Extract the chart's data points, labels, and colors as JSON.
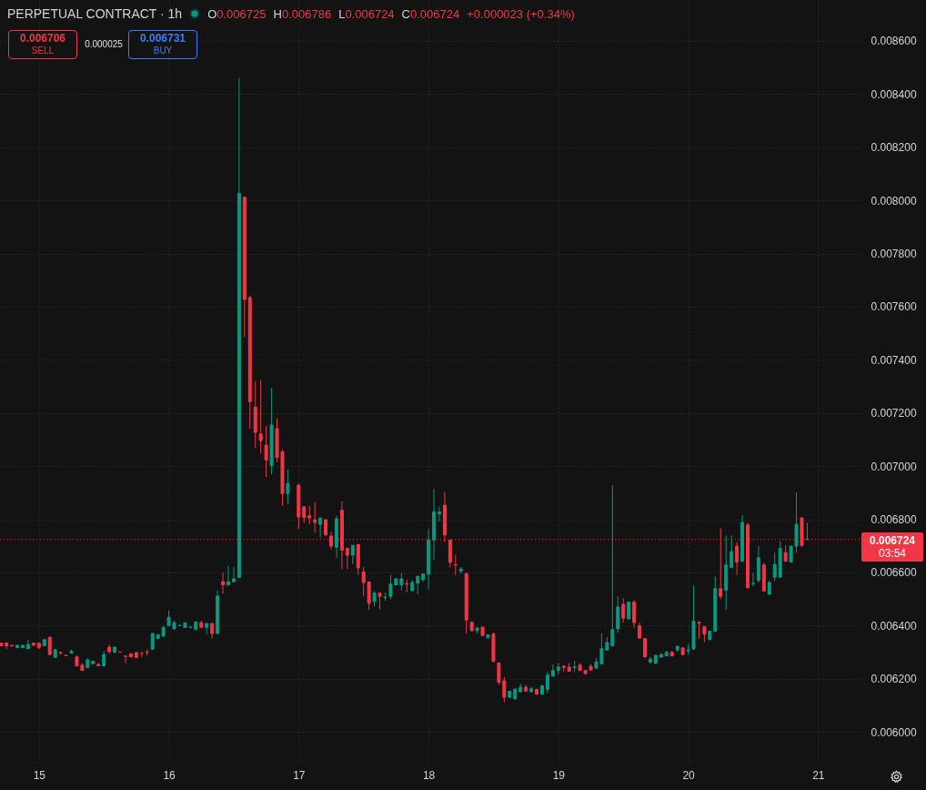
{
  "chart_data": {
    "type": "candlestick",
    "title": "PERPETUAL CONTRACT · 1h",
    "annotations": [
      "O0.006725",
      "H0.006786",
      "L0.006724",
      "C0.006724",
      "+0.000023 (+0.34%)",
      "0.006706",
      "SELL",
      "0.000025",
      "0.006731",
      "BUY",
      "03:54"
    ],
    "x": [
      14.7083,
      14.75,
      14.7917,
      14.8333,
      14.875,
      14.9167,
      14.9583,
      15,
      15.0417,
      15.0833,
      15.125,
      15.1667,
      15.2083,
      15.25,
      15.2917,
      15.3333,
      15.375,
      15.4167,
      15.4583,
      15.5,
      15.5417,
      15.5833,
      15.625,
      15.6667,
      15.7083,
      15.75,
      15.7917,
      15.8333,
      15.875,
      15.9167,
      15.9583,
      16,
      16.0417,
      16.0833,
      16.125,
      16.1667,
      16.2083,
      16.25,
      16.2917,
      16.3333,
      16.375,
      16.4167,
      16.4583,
      16.5,
      16.5417,
      16.5833,
      16.625,
      16.6667,
      16.7083,
      16.75,
      16.7917,
      16.8333,
      16.875,
      16.9167,
      17,
      17.0417,
      17.0833,
      17.125,
      17.1667,
      17.2083,
      17.25,
      17.2917,
      17.3333,
      17.375,
      17.4167,
      17.4583,
      17.5,
      17.5417,
      17.5833,
      17.625,
      17.6667,
      17.7083,
      17.75,
      17.7917,
      17.8333,
      17.875,
      17.9167,
      17.9583,
      18,
      18.0417,
      18.0833,
      18.125,
      18.1667,
      18.2083,
      18.25,
      18.2917,
      18.3333,
      18.375,
      18.4167,
      18.4583,
      18.5,
      18.5417,
      18.5833,
      18.625,
      18.6667,
      18.7083,
      18.75,
      18.7917,
      18.8333,
      18.875,
      18.9167,
      18.9583,
      19,
      19.0417,
      19.0833,
      19.125,
      19.1667,
      19.2083,
      19.25,
      19.2917,
      19.3333,
      19.375,
      19.4167,
      19.4583,
      19.5,
      19.5417,
      19.5833,
      19.625,
      19.6667,
      19.7083,
      19.75,
      19.7917,
      19.8333,
      19.875,
      19.9167,
      19.9583,
      20,
      20.0417,
      20.0833,
      20.125,
      20.1667,
      20.2083,
      20.25,
      20.2917,
      20.3333,
      20.375,
      20.4167,
      20.4583,
      20.5,
      20.5417,
      20.5833,
      20.625,
      20.6667,
      20.7083,
      20.75,
      20.7917,
      20.8333,
      20.875,
      20.9167
    ],
    "ohlc": [
      [
        0.006334,
        0.006336,
        0.006322,
        0.006324
      ],
      [
        0.006334,
        0.006336,
        0.006311,
        0.006324
      ],
      [
        0.006325,
        0.006327,
        0.006321,
        0.006323
      ],
      [
        0.006317,
        0.006326,
        0.006315,
        0.006326
      ],
      [
        0.006317,
        0.006327,
        0.006315,
        0.006326
      ],
      [
        0.006313,
        0.006347,
        0.006311,
        0.006329
      ],
      [
        0.006334,
        0.006336,
        0.006324,
        0.006326
      ],
      [
        0.006334,
        0.006336,
        0.006311,
        0.006318
      ],
      [
        0.006324,
        0.006349,
        0.006322,
        0.006347
      ],
      [
        0.006356,
        0.006358,
        0.006288,
        0.006291
      ],
      [
        0.00628,
        0.006313,
        0.006278,
        0.006309
      ],
      [
        0.006299,
        0.0063,
        0.00629,
        0.006297
      ],
      [
        0.006288,
        0.006289,
        0.006286,
        0.006287
      ],
      [
        0.006296,
        0.006309,
        0.006295,
        0.006303
      ],
      [
        0.006282,
        0.006288,
        0.006247,
        0.006248
      ],
      [
        0.006251,
        0.006259,
        0.00623,
        0.006231
      ],
      [
        0.006242,
        0.006277,
        0.00624,
        0.006271
      ],
      [
        0.006256,
        0.006267,
        0.006255,
        0.006266
      ],
      [
        0.006254,
        0.006259,
        0.006248,
        0.006249
      ],
      [
        0.006248,
        0.006303,
        0.006246,
        0.006291
      ],
      [
        0.006319,
        0.006328,
        0.006294,
        0.006302
      ],
      [
        0.006299,
        0.00632,
        0.006298,
        0.006319
      ],
      [
        0.006301,
        0.006302,
        0.006299,
        0.0063
      ],
      [
        0.006285,
        0.006286,
        0.006259,
        0.006284
      ],
      [
        0.006294,
        0.006295,
        0.006282,
        0.006282
      ],
      [
        0.006298,
        0.006302,
        0.006279,
        0.006279
      ],
      [
        0.006297,
        0.006298,
        0.006282,
        0.006296
      ],
      [
        0.0063,
        0.006311,
        0.006288,
        0.006299
      ],
      [
        0.006311,
        0.006372,
        0.00631,
        0.00637
      ],
      [
        0.006351,
        0.006366,
        0.00635,
        0.006366
      ],
      [
        0.00636,
        0.006399,
        0.006359,
        0.006393
      ],
      [
        0.006399,
        0.006456,
        0.006398,
        0.006431
      ],
      [
        0.006388,
        0.006419,
        0.006383,
        0.006411
      ],
      [
        0.0064,
        0.006402,
        0.006398,
        0.006401
      ],
      [
        0.006393,
        0.006411,
        0.006392,
        0.00641
      ],
      [
        0.006393,
        0.006397,
        0.00639,
        0.006394
      ],
      [
        0.006385,
        0.006414,
        0.006384,
        0.006414
      ],
      [
        0.006411,
        0.006419,
        0.006393,
        0.006393
      ],
      [
        0.006393,
        0.006408,
        0.006368,
        0.006408
      ],
      [
        0.006408,
        0.006409,
        0.006351,
        0.00637
      ],
      [
        0.00637,
        0.006531,
        0.006369,
        0.006511
      ],
      [
        0.006565,
        0.0066,
        0.00652,
        0.006553
      ],
      [
        0.006553,
        0.006625,
        0.006551,
        0.006565
      ],
      [
        0.006565,
        0.006621,
        0.006564,
        0.006576
      ],
      [
        0.006581,
        0.00846,
        0.006579,
        0.008026
      ],
      [
        0.008012,
        0.008015,
        0.007485,
        0.007627
      ],
      [
        0.007634,
        0.007641,
        0.007141,
        0.007243
      ],
      [
        0.007222,
        0.00732,
        0.007068,
        0.007127
      ],
      [
        0.007121,
        0.007325,
        0.007047,
        0.007096
      ],
      [
        0.007079,
        0.007152,
        0.006959,
        0.007023
      ],
      [
        0.007002,
        0.007294,
        0.00697,
        0.007155
      ],
      [
        0.007141,
        0.00718,
        0.007015,
        0.007033
      ],
      [
        0.007054,
        0.007061,
        0.006851,
        0.006897
      ],
      [
        0.006897,
        0.006987,
        0.006858,
        0.006935
      ],
      [
        0.006928,
        0.006935,
        0.006763,
        0.006809
      ],
      [
        0.006847,
        0.00685,
        0.006786,
        0.006807
      ],
      [
        0.006813,
        0.006851,
        0.006781,
        0.006805
      ],
      [
        0.006798,
        0.006865,
        0.006749,
        0.006788
      ],
      [
        0.006781,
        0.006807,
        0.006732,
        0.006805
      ],
      [
        0.006798,
        0.0068,
        0.006738,
        0.006741
      ],
      [
        0.006737,
        0.006754,
        0.006687,
        0.006699
      ],
      [
        0.006695,
        0.006813,
        0.006655,
        0.006802
      ],
      [
        0.006834,
        0.006867,
        0.006613,
        0.006684
      ],
      [
        0.006691,
        0.006692,
        0.006613,
        0.006665
      ],
      [
        0.006665,
        0.006702,
        0.00663,
        0.006702
      ],
      [
        0.006705,
        0.006706,
        0.00659,
        0.006617
      ],
      [
        0.006602,
        0.006621,
        0.00651,
        0.006562
      ],
      [
        0.006564,
        0.006565,
        0.006459,
        0.006484
      ],
      [
        0.006491,
        0.00653,
        0.006471,
        0.006522
      ],
      [
        0.006522,
        0.006524,
        0.006461,
        0.00651
      ],
      [
        0.006505,
        0.006524,
        0.006493,
        0.006507
      ],
      [
        0.00651,
        0.00659,
        0.006499,
        0.006556
      ],
      [
        0.006553,
        0.006579,
        0.006552,
        0.006576
      ],
      [
        0.006553,
        0.006598,
        0.006533,
        0.006576
      ],
      [
        0.006558,
        0.006573,
        0.006525,
        0.006556
      ],
      [
        0.006531,
        0.006571,
        0.00653,
        0.006562
      ],
      [
        0.00656,
        0.006587,
        0.006518,
        0.006585
      ],
      [
        0.006573,
        0.006594,
        0.006565,
        0.006594
      ],
      [
        0.006594,
        0.006762,
        0.006537,
        0.006722
      ],
      [
        0.006722,
        0.006914,
        0.006647,
        0.006828
      ],
      [
        0.00682,
        0.006847,
        0.006792,
        0.006827
      ],
      [
        0.006853,
        0.006904,
        0.006714,
        0.006741
      ],
      [
        0.006722,
        0.006724,
        0.006619,
        0.006638
      ],
      [
        0.00663,
        0.006665,
        0.00659,
        0.006628
      ],
      [
        0.006605,
        0.006621,
        0.006596,
        0.006613
      ],
      [
        0.006596,
        0.006598,
        0.00637,
        0.006421
      ],
      [
        0.006413,
        0.006415,
        0.006378,
        0.006381
      ],
      [
        0.006381,
        0.006393,
        0.006371,
        0.006391
      ],
      [
        0.006394,
        0.006396,
        0.00636,
        0.006362
      ],
      [
        0.006354,
        0.006366,
        0.006352,
        0.006365
      ],
      [
        0.006368,
        0.006373,
        0.006263,
        0.006265
      ],
      [
        0.006259,
        0.006261,
        0.006177,
        0.006187
      ],
      [
        0.006192,
        0.006206,
        0.006111,
        0.00613
      ],
      [
        0.00613,
        0.006155,
        0.006128,
        0.006153
      ],
      [
        0.006124,
        0.006163,
        0.006122,
        0.006161
      ],
      [
        0.006151,
        0.006182,
        0.006149,
        0.006168
      ],
      [
        0.006168,
        0.006176,
        0.006149,
        0.006154
      ],
      [
        0.006151,
        0.00617,
        0.006149,
        0.006162
      ],
      [
        0.00616,
        0.006162,
        0.00614,
        0.006142
      ],
      [
        0.006142,
        0.006176,
        0.00614,
        0.006174
      ],
      [
        0.006159,
        0.006225,
        0.006145,
        0.006214
      ],
      [
        0.00621,
        0.006254,
        0.006208,
        0.006231
      ],
      [
        0.006231,
        0.006259,
        0.006217,
        0.006244
      ],
      [
        0.006247,
        0.00625,
        0.006225,
        0.006242
      ],
      [
        0.006244,
        0.006259,
        0.006226,
        0.006228
      ],
      [
        0.006242,
        0.006267,
        0.006225,
        0.006244
      ],
      [
        0.006251,
        0.006259,
        0.00623,
        0.006231
      ],
      [
        0.006231,
        0.006233,
        0.006218,
        0.006219
      ],
      [
        0.006246,
        0.006256,
        0.006232,
        0.006233
      ],
      [
        0.00624,
        0.006279,
        0.006238,
        0.006263
      ],
      [
        0.006256,
        0.00637,
        0.006254,
        0.006313
      ],
      [
        0.006308,
        0.006356,
        0.006306,
        0.006336
      ],
      [
        0.006324,
        0.006928,
        0.00632,
        0.006385
      ],
      [
        0.006388,
        0.00651,
        0.006373,
        0.00647
      ],
      [
        0.00648,
        0.006503,
        0.006411,
        0.006428
      ],
      [
        0.006425,
        0.00649,
        0.006423,
        0.006488
      ],
      [
        0.006488,
        0.006496,
        0.006391,
        0.006411
      ],
      [
        0.006399,
        0.006411,
        0.006351,
        0.006353
      ],
      [
        0.006351,
        0.006353,
        0.00628,
        0.006282
      ],
      [
        0.006263,
        0.006282,
        0.006256,
        0.006274
      ],
      [
        0.006259,
        0.00629,
        0.006254,
        0.006288
      ],
      [
        0.006281,
        0.006296,
        0.006279,
        0.006291
      ],
      [
        0.006286,
        0.006305,
        0.006284,
        0.006299
      ],
      [
        0.006299,
        0.006305,
        0.006284,
        0.006286
      ],
      [
        0.006308,
        0.006324,
        0.006302,
        0.006322
      ],
      [
        0.006316,
        0.006318,
        0.006289,
        0.006291
      ],
      [
        0.006305,
        0.006331,
        0.006291,
        0.006308
      ],
      [
        0.006313,
        0.00655,
        0.006307,
        0.006416
      ],
      [
        0.006413,
        0.006416,
        0.006351,
        0.00641
      ],
      [
        0.006396,
        0.006398,
        0.006339,
        0.006368
      ],
      [
        0.006347,
        0.00638,
        0.006345,
        0.006379
      ],
      [
        0.006379,
        0.006585,
        0.006375,
        0.006539
      ],
      [
        0.006539,
        0.006767,
        0.006499,
        0.00651
      ],
      [
        0.006533,
        0.006739,
        0.006459,
        0.006628
      ],
      [
        0.006619,
        0.006739,
        0.006615,
        0.006678
      ],
      [
        0.006699,
        0.006713,
        0.00659,
        0.006639
      ],
      [
        0.006642,
        0.006815,
        0.00664,
        0.006788
      ],
      [
        0.006779,
        0.006787,
        0.00654,
        0.006542
      ],
      [
        0.006556,
        0.006598,
        0.006548,
        0.006558
      ],
      [
        0.006571,
        0.006699,
        0.006562,
        0.006655
      ],
      [
        0.006628,
        0.006636,
        0.006528,
        0.00653
      ],
      [
        0.006518,
        0.00657,
        0.006515,
        0.006562
      ],
      [
        0.006582,
        0.006674,
        0.006568,
        0.00663
      ],
      [
        0.006582,
        0.006718,
        0.00658,
        0.00669
      ],
      [
        0.006674,
        0.006701,
        0.00664,
        0.006642
      ],
      [
        0.006639,
        0.006701,
        0.006637,
        0.006699
      ],
      [
        0.006699,
        0.006901,
        0.006674,
        0.006781
      ],
      [
        0.006805,
        0.006807,
        0.006697,
        0.006701
      ],
      [
        0.006725,
        0.006786,
        0.006724,
        0.006724
      ]
    ],
    "colors": [
      "#f23645",
      "#f23645",
      "#f23645",
      "#089981",
      "#089981",
      "#089981",
      "#f23645",
      "#f23645",
      "#089981",
      "#f23645",
      "#089981",
      "#f23645",
      "#f23645",
      "#089981",
      "#f23645",
      "#f23645",
      "#089981",
      "#089981",
      "#f23645",
      "#089981",
      "#f23645",
      "#089981",
      "#f23645",
      "#f23645",
      "#f23645",
      "#f23645",
      "#f23645",
      "#f23645",
      "#089981",
      "#089981",
      "#089981",
      "#089981",
      "#089981",
      "#089981",
      "#089981",
      "#089981",
      "#089981",
      "#f23645",
      "#089981",
      "#f23645",
      "#089981",
      "#f23645",
      "#089981",
      "#089981",
      "#089981",
      "#f23645",
      "#f23645",
      "#f23645",
      "#f23645",
      "#f23645",
      "#089981",
      "#f23645",
      "#f23645",
      "#089981",
      "#f23645",
      "#f23645",
      "#f23645",
      "#f23645",
      "#089981",
      "#f23645",
      "#f23645",
      "#089981",
      "#f23645",
      "#f23645",
      "#089981",
      "#f23645",
      "#f23645",
      "#f23645",
      "#089981",
      "#f23645",
      "#089981",
      "#089981",
      "#089981",
      "#089981",
      "#f23645",
      "#089981",
      "#089981",
      "#089981",
      "#089981",
      "#089981",
      "#089981",
      "#f23645",
      "#f23645",
      "#f23645",
      "#089981",
      "#f23645",
      "#f23645",
      "#089981",
      "#f23645",
      "#089981",
      "#f23645",
      "#f23645",
      "#f23645",
      "#089981",
      "#089981",
      "#089981",
      "#f23645",
      "#089981",
      "#f23645",
      "#089981",
      "#089981",
      "#089981",
      "#089981",
      "#f23645",
      "#f23645",
      "#089981",
      "#f23645",
      "#f23645",
      "#f23645",
      "#089981",
      "#089981",
      "#089981",
      "#089981",
      "#089981",
      "#f23645",
      "#089981",
      "#f23645",
      "#f23645",
      "#f23645",
      "#089981",
      "#089981",
      "#089981",
      "#089981",
      "#f23645",
      "#089981",
      "#f23645",
      "#089981",
      "#089981",
      "#f23645",
      "#f23645",
      "#089981",
      "#089981",
      "#f23645",
      "#089981",
      "#089981",
      "#f23645",
      "#089981",
      "#f23645",
      "#089981",
      "#089981",
      "#f23645",
      "#089981",
      "#089981",
      "#089981",
      "#f23645",
      "#089981",
      "#089981",
      "#f23645",
      "#f23645"
    ],
    "xlim": [
      14.7,
      21.32
    ],
    "xticks": [
      15,
      16,
      17,
      18,
      19,
      20,
      21
    ],
    "ylim": [
      0.005884,
      0.008754
    ],
    "yticks": [
      {
        "value": 0.006,
        "label": "0.006000"
      },
      {
        "value": 0.0062,
        "label": "0.006200"
      },
      {
        "value": 0.0064,
        "label": "0.006400"
      },
      {
        "value": 0.0066,
        "label": "0.006600"
      },
      {
        "value": 0.0068,
        "label": "0.006800"
      },
      {
        "value": 0.007,
        "label": "0.007000"
      },
      {
        "value": 0.0072,
        "label": "0.007200"
      },
      {
        "value": 0.0074,
        "label": "0.007400"
      },
      {
        "value": 0.0076,
        "label": "0.007600"
      },
      {
        "value": 0.0078,
        "label": "0.007800"
      },
      {
        "value": 0.008,
        "label": "0.008000"
      },
      {
        "value": 0.0082,
        "label": "0.008200"
      },
      {
        "value": 0.0084,
        "label": "0.008400"
      },
      {
        "value": 0.0086,
        "label": "0.008600"
      }
    ],
    "grid": true,
    "ref_lines": [
      {
        "axis": "y",
        "value": 0.006724,
        "label": "0.006724",
        "color": "#f23645",
        "line_style": "dotted"
      }
    ]
  }
}
